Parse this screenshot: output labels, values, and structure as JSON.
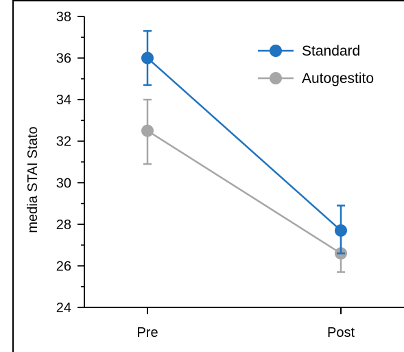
{
  "chart_data": {
    "type": "line",
    "categories": [
      "Pre",
      "Post"
    ],
    "ylabel": "media STAI Stato",
    "ylim": [
      24,
      38
    ],
    "yticks": [
      24,
      26,
      28,
      30,
      32,
      34,
      36,
      38
    ],
    "legend_position": "top-right",
    "series": [
      {
        "name": "Standard",
        "color": "#1f73c0",
        "values": [
          36.0,
          27.7
        ],
        "error_low": [
          34.7,
          26.6
        ],
        "error_high": [
          37.3,
          28.9
        ]
      },
      {
        "name": "Autogestito",
        "color": "#a6a6a6",
        "values": [
          32.5,
          26.6
        ],
        "error_low": [
          30.9,
          25.7
        ],
        "error_high": [
          34.0,
          27.6
        ]
      }
    ]
  }
}
